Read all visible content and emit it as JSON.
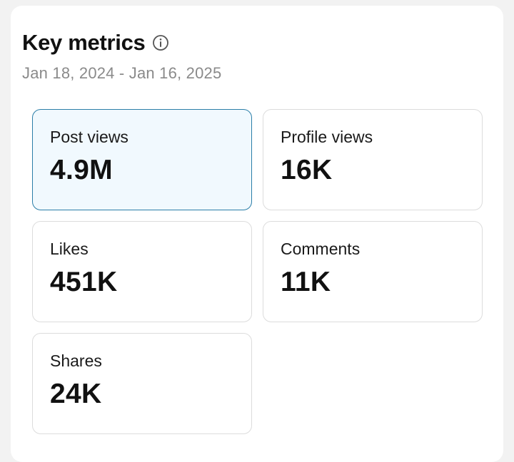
{
  "header": {
    "title": "Key metrics",
    "info_icon": "info-circle-icon",
    "date_range": "Jan 18, 2024 - Jan 16, 2025"
  },
  "metrics": [
    {
      "label": "Post views",
      "value": "4.9M",
      "selected": true
    },
    {
      "label": "Profile views",
      "value": "16K",
      "selected": false
    },
    {
      "label": "Likes",
      "value": "451K",
      "selected": false
    },
    {
      "label": "Comments",
      "value": "11K",
      "selected": false
    },
    {
      "label": "Shares",
      "value": "24K",
      "selected": false
    }
  ],
  "colors": {
    "selected_border": "#2b7ea8",
    "selected_bg": "#f1f9fe",
    "card_border": "#dcdcdc",
    "secondary_text": "#8a8a8a"
  }
}
